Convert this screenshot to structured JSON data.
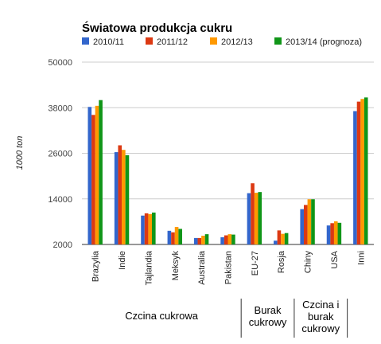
{
  "chart_data": {
    "type": "bar",
    "title": "Światowa produkcja cukru",
    "ylabel": "1000 ton",
    "xlabel": "",
    "ylim": [
      2000,
      50000
    ],
    "yticks": [
      2000,
      14000,
      26000,
      38000,
      50000
    ],
    "grid": true,
    "legend_position": "top",
    "categories": [
      "Brazylia",
      "Indie",
      "Tajlandia",
      "Meksyk",
      "Australia",
      "Pakistan",
      "EU-27",
      "Rosja",
      "Chiny",
      "USA",
      "Inni"
    ],
    "series": [
      {
        "name": "2010/11",
        "color": "#3366cc",
        "values": [
          38200,
          26300,
          9600,
          5600,
          3700,
          3900,
          15500,
          3000,
          11300,
          7000,
          37100
        ]
      },
      {
        "name": "2011/12",
        "color": "#dc3912",
        "values": [
          36100,
          28100,
          10200,
          5200,
          3700,
          4400,
          18100,
          5700,
          12400,
          7600,
          39600
        ]
      },
      {
        "name": "2012/13",
        "color": "#ff9900",
        "values": [
          38500,
          26900,
          10000,
          6600,
          4300,
          4700,
          15600,
          4800,
          13900,
          8100,
          40300
        ]
      },
      {
        "name": "2013/14 (prognoza)",
        "color": "#109618",
        "values": [
          40000,
          25500,
          10400,
          6100,
          4700,
          4600,
          15800,
          5000,
          13900,
          7700,
          40700
        ]
      }
    ],
    "groups": [
      {
        "lines": [
          "Czcina cukrowa"
        ],
        "from": 0,
        "to": 5
      },
      {
        "lines": [
          "Burak",
          "cukrowy"
        ],
        "from": 6,
        "to": 7
      },
      {
        "lines": [
          "Czcina i",
          "burak",
          "cukrowy"
        ],
        "from": 8,
        "to": 9
      }
    ]
  }
}
